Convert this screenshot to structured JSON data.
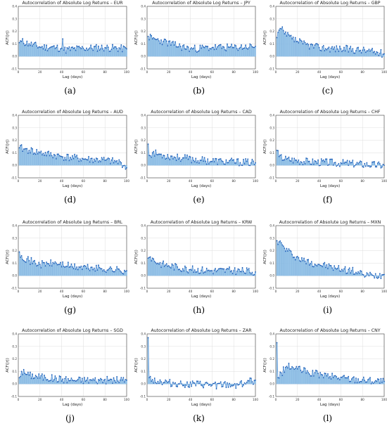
{
  "chart_data": [
    {
      "panel_label": "(a)",
      "type": "bar",
      "title": "Autocorrelation of Absolute Log Returns – EUR",
      "xlabel": "Lag (days)",
      "ylabel": "ACF(|r|)",
      "xlim": [
        0,
        100
      ],
      "ylim": [
        -0.1,
        0.4
      ],
      "xticks": [
        0,
        20,
        40,
        60,
        80,
        100
      ],
      "yticks": [
        -0.1,
        0.0,
        0.1,
        0.2,
        0.3,
        0.4
      ],
      "grid": true,
      "seed": 11,
      "series": [
        {
          "keypoints": [
            [
              1,
              0.11
            ],
            [
              3,
              0.12
            ],
            [
              10,
              0.1
            ],
            [
              20,
              0.075
            ],
            [
              35,
              0.07
            ],
            [
              40,
              0.065
            ],
            [
              41,
              0.14
            ],
            [
              42,
              0.05
            ],
            [
              60,
              0.065
            ],
            [
              80,
              0.07
            ],
            [
              100,
              0.06
            ]
          ]
        }
      ]
    },
    {
      "panel_label": "(b)",
      "type": "bar",
      "title": "Autocorrelation of Absolute Log Returns – JPY",
      "xlabel": "Lag (days)",
      "ylabel": "ACF(|r|)",
      "xlim": [
        0,
        100
      ],
      "ylim": [
        -0.1,
        0.4
      ],
      "xticks": [
        0,
        20,
        40,
        60,
        80,
        100
      ],
      "yticks": [
        -0.1,
        0.0,
        0.1,
        0.2,
        0.3,
        0.4
      ],
      "grid": true,
      "seed": 23,
      "series": [
        {
          "keypoints": [
            [
              1,
              0.16
            ],
            [
              5,
              0.14
            ],
            [
              15,
              0.12
            ],
            [
              25,
              0.09
            ],
            [
              40,
              0.06
            ],
            [
              60,
              0.07
            ],
            [
              80,
              0.07
            ],
            [
              100,
              0.08
            ]
          ]
        }
      ]
    },
    {
      "panel_label": "(c)",
      "type": "bar",
      "title": "Autocorrelation of Absolute Log Returns – GBP",
      "xlabel": "Lag (days)",
      "ylabel": "ACF(|r|)",
      "xlim": [
        0,
        100
      ],
      "ylim": [
        -0.1,
        0.4
      ],
      "xticks": [
        0,
        20,
        40,
        60,
        80,
        100
      ],
      "yticks": [
        -0.1,
        0.0,
        0.1,
        0.2,
        0.3,
        0.4
      ],
      "grid": true,
      "seed": 37,
      "series": [
        {
          "keypoints": [
            [
              1,
              0.15
            ],
            [
              3,
              0.21
            ],
            [
              5,
              0.22
            ],
            [
              8,
              0.18
            ],
            [
              15,
              0.14
            ],
            [
              25,
              0.1
            ],
            [
              40,
              0.07
            ],
            [
              60,
              0.06
            ],
            [
              80,
              0.05
            ],
            [
              100,
              0.02
            ]
          ]
        }
      ]
    },
    {
      "panel_label": "(d)",
      "type": "bar",
      "title": "Autocorrelation of Absolute Log Returns – AUD",
      "xlabel": "Lag (days)",
      "ylabel": "ACF(|r|)",
      "xlim": [
        0,
        100
      ],
      "ylim": [
        -0.1,
        0.4
      ],
      "xticks": [
        0,
        20,
        40,
        60,
        80,
        100
      ],
      "yticks": [
        -0.1,
        0.0,
        0.1,
        0.2,
        0.3,
        0.4
      ],
      "grid": true,
      "seed": 41,
      "series": [
        {
          "keypoints": [
            [
              1,
              0.14
            ],
            [
              5,
              0.13
            ],
            [
              10,
              0.12
            ],
            [
              20,
              0.1
            ],
            [
              40,
              0.07
            ],
            [
              60,
              0.05
            ],
            [
              80,
              0.04
            ],
            [
              95,
              0.02
            ],
            [
              100,
              -0.02
            ]
          ]
        }
      ]
    },
    {
      "panel_label": "(e)",
      "type": "bar",
      "title": "Autocorrelation of Absolute Log Returns – CAD",
      "xlabel": "Lag (days)",
      "ylabel": "ACF(|r|)",
      "xlim": [
        0,
        100
      ],
      "ylim": [
        -0.1,
        0.4
      ],
      "xticks": [
        0,
        20,
        40,
        60,
        80,
        100
      ],
      "yticks": [
        -0.1,
        0.0,
        0.1,
        0.2,
        0.3,
        0.4
      ],
      "grid": true,
      "seed": 53,
      "series": [
        {
          "keypoints": [
            [
              1,
              0.17
            ],
            [
              2,
              0.08
            ],
            [
              5,
              0.1
            ],
            [
              15,
              0.08
            ],
            [
              30,
              0.06
            ],
            [
              50,
              0.04
            ],
            [
              70,
              0.03
            ],
            [
              100,
              0.02
            ]
          ]
        }
      ]
    },
    {
      "panel_label": "(f)",
      "type": "bar",
      "title": "Autocorrelation of Absolute Log Returns – CHF",
      "xlabel": "Lag (days)",
      "ylabel": "ACF(|r|)",
      "xlim": [
        0,
        100
      ],
      "ylim": [
        -0.1,
        0.4
      ],
      "xticks": [
        0,
        20,
        40,
        60,
        80,
        100
      ],
      "yticks": [
        -0.1,
        0.0,
        0.1,
        0.2,
        0.3,
        0.4
      ],
      "grid": true,
      "seed": 67,
      "series": [
        {
          "keypoints": [
            [
              1,
              0.12
            ],
            [
              3,
              0.07
            ],
            [
              10,
              0.05
            ],
            [
              30,
              0.03
            ],
            [
              60,
              0.02
            ],
            [
              100,
              0.0
            ]
          ]
        }
      ]
    },
    {
      "panel_label": "(g)",
      "type": "bar",
      "title": "Autocorrelation of Absolute Log Returns – BRL",
      "xlabel": "Lag (days)",
      "ylabel": "ACF(|r|)",
      "xlim": [
        0,
        100
      ],
      "ylim": [
        -0.1,
        0.4
      ],
      "xticks": [
        0,
        20,
        40,
        60,
        80,
        100
      ],
      "yticks": [
        -0.1,
        0.0,
        0.1,
        0.2,
        0.3,
        0.4
      ],
      "grid": true,
      "seed": 71,
      "series": [
        {
          "keypoints": [
            [
              1,
              0.19
            ],
            [
              3,
              0.16
            ],
            [
              10,
              0.12
            ],
            [
              20,
              0.09
            ],
            [
              35,
              0.1
            ],
            [
              50,
              0.07
            ],
            [
              70,
              0.06
            ],
            [
              100,
              0.04
            ]
          ]
        }
      ]
    },
    {
      "panel_label": "(h)",
      "type": "bar",
      "title": "Autocorrelation of Absolute Log Returns – KRW",
      "xlabel": "Lag (days)",
      "ylabel": "ACF(|r|)",
      "xlim": [
        0,
        100
      ],
      "ylim": [
        -0.1,
        0.4
      ],
      "xticks": [
        0,
        20,
        40,
        60,
        80,
        100
      ],
      "yticks": [
        -0.1,
        0.0,
        0.1,
        0.2,
        0.3,
        0.4
      ],
      "grid": true,
      "seed": 83,
      "series": [
        {
          "keypoints": [
            [
              1,
              0.14
            ],
            [
              3,
              0.15
            ],
            [
              10,
              0.1
            ],
            [
              20,
              0.08
            ],
            [
              40,
              0.05
            ],
            [
              60,
              0.04
            ],
            [
              80,
              0.04
            ],
            [
              100,
              0.03
            ]
          ]
        }
      ]
    },
    {
      "panel_label": "(i)",
      "type": "bar",
      "title": "Autocorrelation of Absolute Log Returns – MXN",
      "xlabel": "Lag (days)",
      "ylabel": "ACF(|r|)",
      "xlim": [
        0,
        100
      ],
      "ylim": [
        -0.1,
        0.4
      ],
      "xticks": [
        0,
        20,
        40,
        60,
        80,
        100
      ],
      "yticks": [
        -0.1,
        0.0,
        0.1,
        0.2,
        0.3,
        0.4
      ],
      "grid": true,
      "seed": 97,
      "series": [
        {
          "keypoints": [
            [
              1,
              0.28
            ],
            [
              3,
              0.27
            ],
            [
              8,
              0.22
            ],
            [
              15,
              0.17
            ],
            [
              25,
              0.12
            ],
            [
              40,
              0.09
            ],
            [
              55,
              0.06
            ],
            [
              70,
              0.04
            ],
            [
              80,
              0.01
            ],
            [
              90,
              0.0
            ],
            [
              100,
              0.01
            ]
          ]
        }
      ]
    },
    {
      "panel_label": "(j)",
      "type": "bar",
      "title": "Autocorrelation of Absolute Log Returns – SGD",
      "xlabel": "Lag (days)",
      "ylabel": "ACF(|r|)",
      "xlim": [
        0,
        100
      ],
      "ylim": [
        -0.1,
        0.4
      ],
      "xticks": [
        0,
        20,
        40,
        60,
        80,
        100
      ],
      "yticks": [
        -0.1,
        0.0,
        0.1,
        0.2,
        0.3,
        0.4
      ],
      "grid": true,
      "seed": 101,
      "series": [
        {
          "keypoints": [
            [
              1,
              0.05
            ],
            [
              3,
              0.1
            ],
            [
              10,
              0.07
            ],
            [
              25,
              0.05
            ],
            [
              50,
              0.03
            ],
            [
              75,
              0.03
            ],
            [
              100,
              0.03
            ]
          ]
        }
      ]
    },
    {
      "panel_label": "(k)",
      "type": "bar",
      "title": "Autocorrelation of Absolute Log Returns – ZAR",
      "xlabel": "Lag (days)",
      "ylabel": "ACF(|r|)",
      "xlim": [
        0,
        100
      ],
      "ylim": [
        -0.1,
        0.4
      ],
      "xticks": [
        0,
        20,
        40,
        60,
        80,
        100
      ],
      "yticks": [
        -0.1,
        0.0,
        0.1,
        0.2,
        0.3,
        0.4
      ],
      "grid": true,
      "seed": 113,
      "series": [
        {
          "keypoints": [
            [
              1,
              0.37
            ],
            [
              2,
              0.05
            ],
            [
              10,
              0.02
            ],
            [
              30,
              0.0
            ],
            [
              60,
              -0.01
            ],
            [
              80,
              -0.01
            ],
            [
              100,
              0.03
            ]
          ]
        }
      ]
    },
    {
      "panel_label": "(l)",
      "type": "bar",
      "title": "Autocorrelation of Absolute Log Returns – CNY",
      "xlabel": "Lag (days)",
      "ylabel": "ACF(|r|)",
      "xlim": [
        0,
        100
      ],
      "ylim": [
        -0.1,
        0.4
      ],
      "xticks": [
        0,
        20,
        40,
        60,
        80,
        100
      ],
      "yticks": [
        -0.1,
        0.0,
        0.1,
        0.2,
        0.3,
        0.4
      ],
      "grid": true,
      "seed": 127,
      "series": [
        {
          "keypoints": [
            [
              1,
              0.33
            ],
            [
              2,
              0.05
            ],
            [
              10,
              0.14
            ],
            [
              20,
              0.12
            ],
            [
              30,
              0.09
            ],
            [
              50,
              0.06
            ],
            [
              70,
              0.04
            ],
            [
              100,
              0.02
            ]
          ]
        }
      ]
    }
  ],
  "colors": {
    "bar": "#9ec9ea",
    "bar_edge": "#5b9bd5",
    "marker": "#1f5fb8",
    "stem": "#2a6fc9",
    "axis": "#444444",
    "grid": "#dddddd"
  }
}
